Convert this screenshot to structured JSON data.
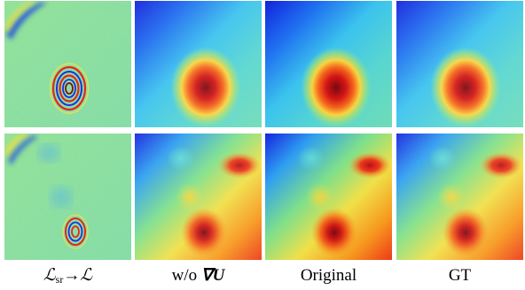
{
  "figure": {
    "captions": [
      {
        "symbol": "ℒ",
        "subscript": "sr",
        "arrow": "→",
        "target": "ℒ"
      },
      {
        "prefix": "w/o ",
        "symbol": "∇U"
      },
      {
        "text": "Original"
      },
      {
        "text": "GT"
      }
    ]
  },
  "colors": {
    "deep_blue": "#1a2ee6",
    "cyan": "#35c8ee",
    "green": "#7fe07a",
    "yellow": "#f4e24a",
    "orange": "#f7901e",
    "red": "#e8241a",
    "dark_red": "#8a0a10"
  }
}
